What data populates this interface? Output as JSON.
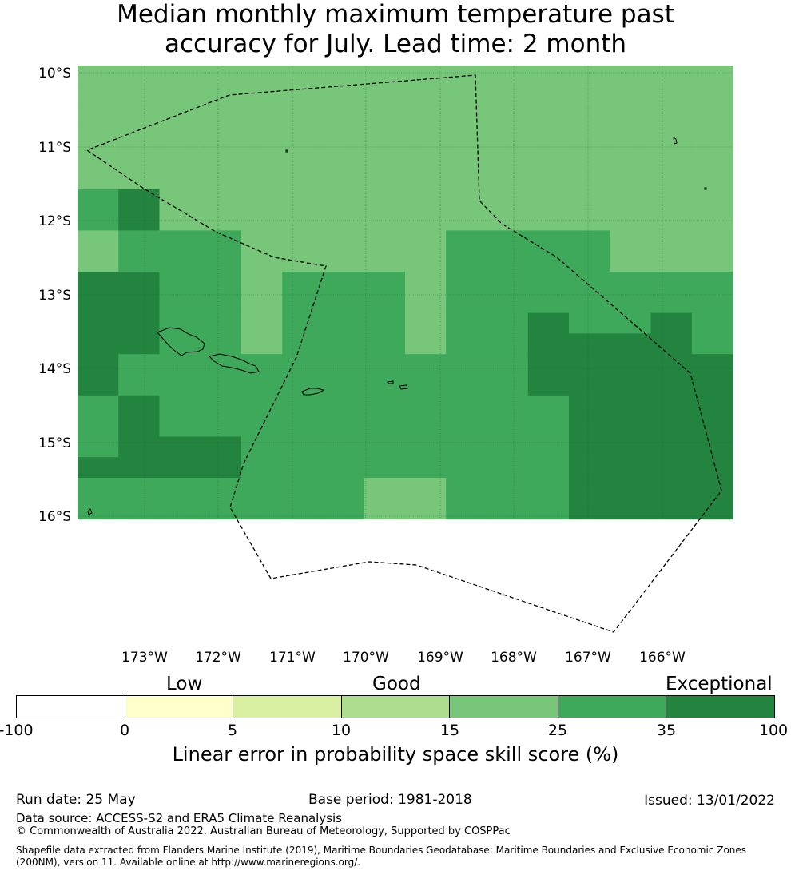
{
  "title": {
    "line1": "Median monthly maximum temperature past",
    "line2": "accuracy for July. Lead time: 2 month"
  },
  "map": {
    "lat_labels": [
      "10°S",
      "11°S",
      "12°S",
      "13°S",
      "14°S",
      "15°S",
      "16°S"
    ],
    "lon_labels": [
      "173°W",
      "172°W",
      "171°W",
      "170°W",
      "169°W",
      "168°W",
      "167°W",
      "166°W"
    ],
    "grid_colors": [
      "#23843f",
      "#3ea95a",
      "#77c679"
    ],
    "grid_rows": [
      "2222222222222222",
      "2222222222222222",
      "2222222222222222",
      "2222222222222222",
      "2222222222222222",
      "2222222222222222",
      "1022222222222222",
      "1022222222222222",
      "2111222221111222",
      "2111222221111222",
      "0011211121111111",
      "0011211121111111",
      "0011211121101101",
      "0011211121100001",
      "0111111111100000",
      "0111111111100000",
      "1011111111110000",
      "1011111111110000",
      "1000111111110000",
      "0000111111110000",
      "1111111221110000",
      "1111111221110000"
    ]
  },
  "legend": {
    "categories": [
      "Low",
      "Good",
      "Exceptional"
    ],
    "ticks": [
      "-100",
      "0",
      "5",
      "10",
      "15",
      "25",
      "35",
      "100"
    ],
    "colors": [
      "#ffffff",
      "#ffffcc",
      "#d9f0a3",
      "#addd8e",
      "#78c679",
      "#3ea95a",
      "#23843f"
    ],
    "label": "Linear error in probability space skill score (%)"
  },
  "footer": {
    "run_date": "Run date: 25 May",
    "base_period": "Base period: 1981-2018",
    "issued": "Issued: 13/01/2022",
    "data_source": "Data source: ACCESS-S2 and ERA5 Climate Reanalysis",
    "copyright": "© Commonwealth of Australia 2022, Australian Bureau of Meteorology, Supported by COSPPac",
    "shapefile_1": "Shapefile data extracted from Flanders Marine Institute (2019), Maritime Boundaries Geodatabase: Maritime Boundaries and Exclusive Economic Zones",
    "shapefile_2": "(200NM), version 11. Available online at http://www.marineregions.org/."
  }
}
